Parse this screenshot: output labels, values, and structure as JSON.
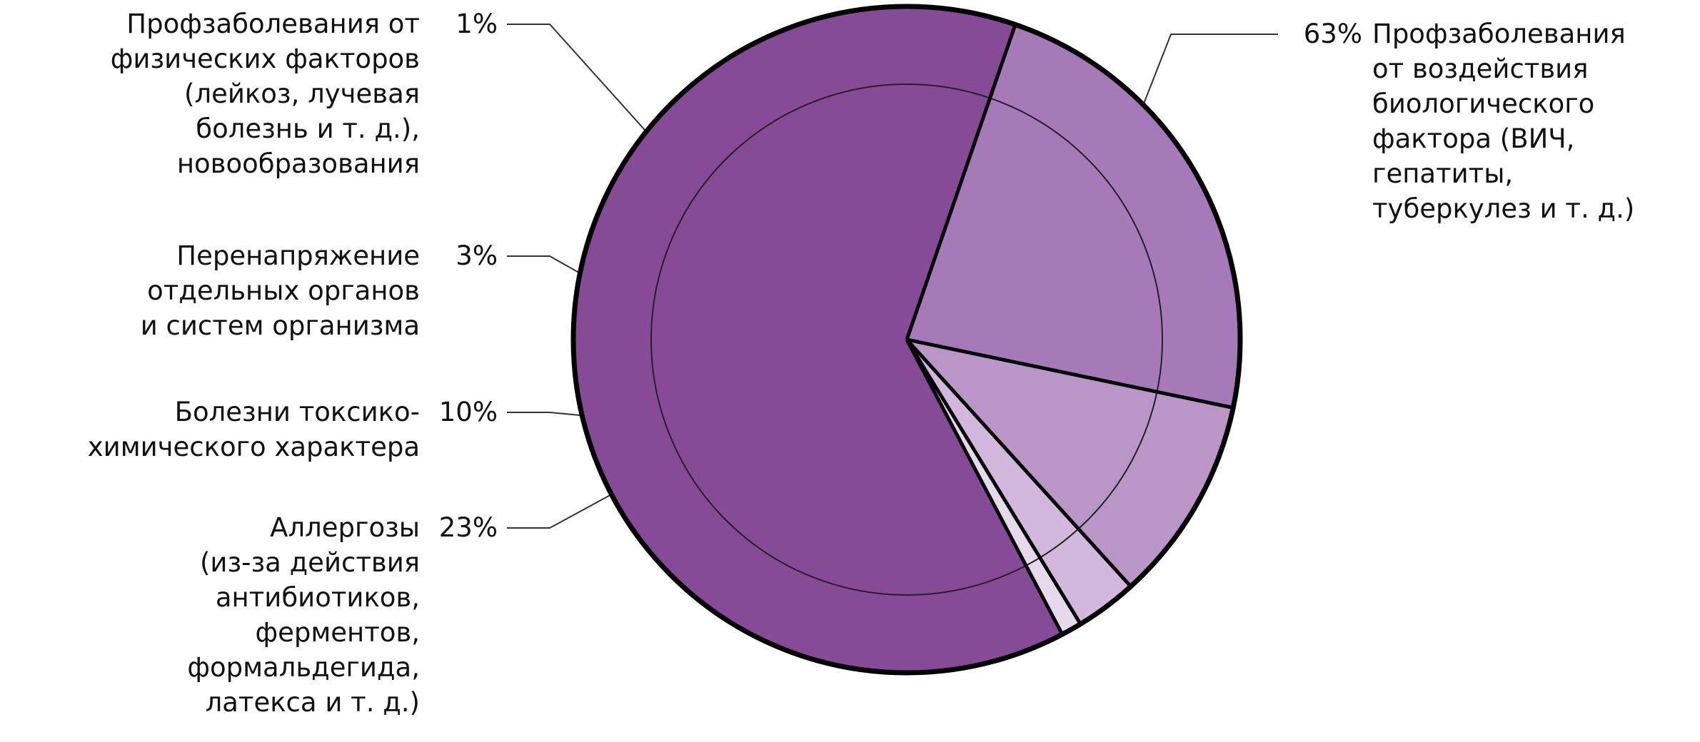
{
  "chart_data": {
    "type": "pie",
    "title": "",
    "slices": [
      {
        "value": 63,
        "percent_label": "63%",
        "label_lines": [
          "Профзаболевания",
          "от воздействия",
          "биологического",
          "фактора (ВИЧ,",
          "гепатиты,",
          "туберкулез и т. д.)"
        ],
        "color": "#874A97"
      },
      {
        "value": 23,
        "percent_label": "23%",
        "label_lines": [
          "Аллергозы",
          "(из-за действия",
          "антибиотиков,",
          "ферментов,",
          "формальдегида,",
          "латекса и т. д.)"
        ],
        "color": "#A679B9"
      },
      {
        "value": 10,
        "percent_label": "10%",
        "label_lines": [
          "Болезни токсико-",
          "химического характера"
        ],
        "color": "#BA96C8"
      },
      {
        "value": 3,
        "percent_label": "3%",
        "label_lines": [
          "Перенапряжение",
          "отдельных органов",
          "и систем организма"
        ],
        "color": "#D3B8DD"
      },
      {
        "value": 1,
        "percent_label": "1%",
        "label_lines": [
          "Профзаболевания от",
          "физических факторов",
          "(лейкоз, лучевая",
          "болезнь и т. д.),",
          "новообразования"
        ],
        "color": "#E7D9EC"
      }
    ],
    "legend": "none"
  }
}
